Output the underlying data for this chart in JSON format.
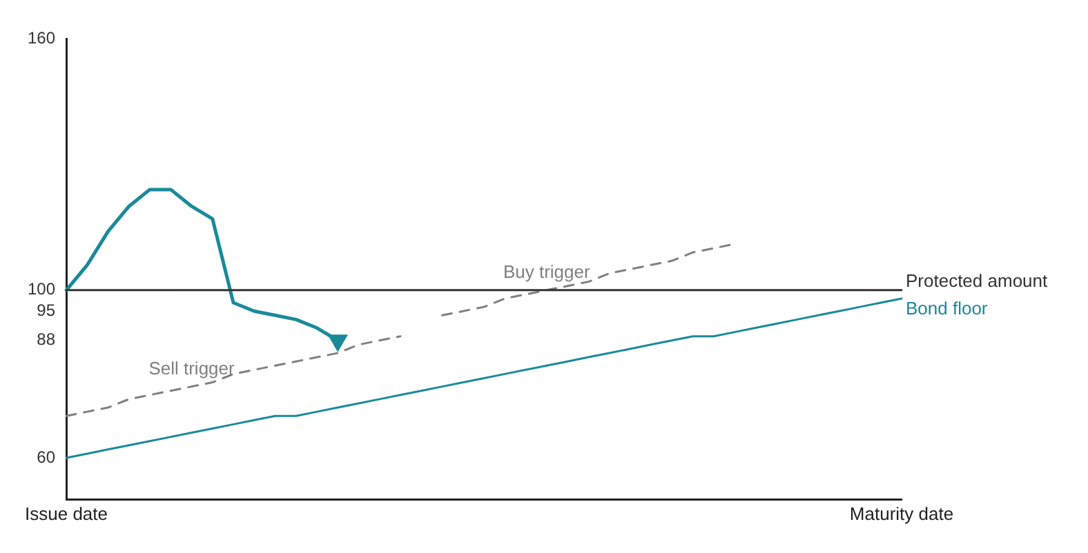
{
  "chart_data": {
    "type": "line",
    "categories": [
      "Issue date",
      null,
      null,
      null,
      null,
      null,
      null,
      null,
      null,
      null,
      null,
      null,
      null,
      null,
      null,
      null,
      null,
      null,
      null,
      null,
      null,
      null,
      null,
      null,
      null,
      null,
      null,
      null,
      null,
      null,
      null,
      null,
      null,
      null,
      null,
      null,
      null,
      null,
      null,
      null,
      "Maturity date"
    ],
    "ylim": [
      50,
      160
    ],
    "yticks": [
      60,
      88,
      95,
      100,
      160
    ],
    "series": [
      {
        "name": "Protected amount",
        "color": "#333333",
        "values": [
          100,
          100,
          100,
          100,
          100,
          100,
          100,
          100,
          100,
          100,
          100,
          100,
          100,
          100,
          100,
          100,
          100,
          100,
          100,
          100,
          100,
          100,
          100,
          100,
          100,
          100,
          100,
          100,
          100,
          100,
          100,
          100,
          100,
          100,
          100,
          100,
          100,
          100,
          100,
          100,
          100
        ]
      },
      {
        "name": "Bond floor",
        "color": "#1a8a99",
        "values": [
          60,
          61,
          62,
          63,
          64,
          65,
          66,
          67,
          68,
          69,
          70,
          70,
          71,
          72,
          73,
          74,
          75,
          76,
          77,
          78,
          79,
          80,
          81,
          82,
          83,
          84,
          85,
          86,
          87,
          88,
          89,
          89,
          90,
          91,
          92,
          93,
          94,
          95,
          96,
          97,
          98
        ]
      },
      {
        "name": "Sell trigger",
        "color": "#808080",
        "line_style": "dashed",
        "values": [
          70,
          71,
          72,
          74,
          75,
          76,
          77,
          78,
          80,
          81,
          82,
          83,
          84,
          85,
          87,
          88,
          89,
          null,
          null,
          null,
          null,
          null,
          null,
          null,
          null,
          null,
          null,
          null,
          null,
          null,
          null,
          null,
          null,
          null,
          null,
          null,
          null,
          null,
          null,
          null,
          null
        ]
      },
      {
        "name": "Buy trigger",
        "color": "#808080",
        "line_style": "dashed",
        "values": [
          null,
          null,
          null,
          null,
          null,
          null,
          null,
          null,
          null,
          null,
          null,
          null,
          null,
          null,
          null,
          null,
          null,
          null,
          94,
          95,
          96,
          98,
          99,
          100,
          101,
          102,
          104,
          105,
          106,
          107,
          109,
          110,
          111,
          null,
          null,
          null,
          null,
          null,
          null,
          null,
          null
        ]
      },
      {
        "color": "#1a8a99",
        "values": [
          100,
          106,
          114,
          120,
          124,
          124,
          120,
          117,
          97,
          95,
          94,
          93,
          91,
          88,
          null,
          null,
          null,
          null,
          null,
          null,
          null,
          null,
          null,
          null,
          null,
          null,
          null,
          null,
          null,
          null,
          null,
          null,
          null,
          null,
          null,
          null,
          null,
          null,
          null,
          null,
          null
        ]
      }
    ]
  }
}
